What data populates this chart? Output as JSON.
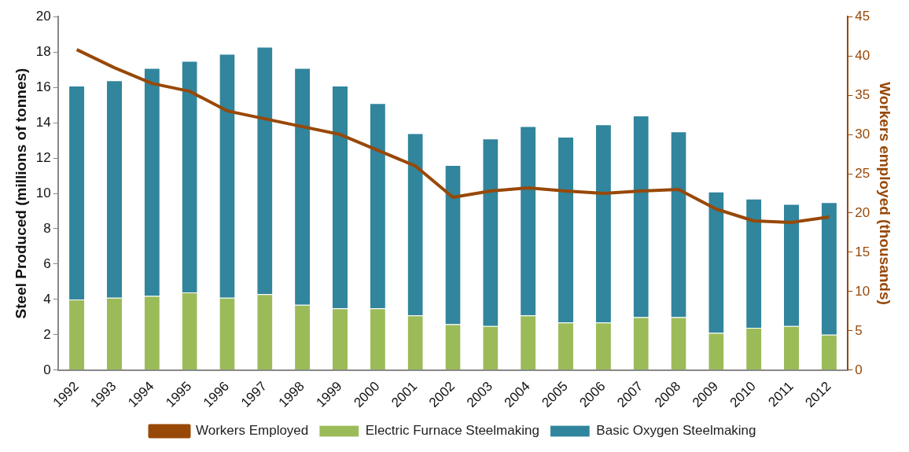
{
  "chart_data": {
    "type": "bar",
    "stacked": true,
    "ylabel": "Steel Produced (millions of tonnes)",
    "y2label": "Workers employed (thousands)",
    "categories": [
      "1992",
      "1993",
      "1994",
      "1995",
      "1996",
      "1997",
      "1998",
      "1999",
      "2000",
      "2001",
      "2002",
      "2003",
      "2004",
      "2005",
      "2006",
      "2007",
      "2008",
      "2009",
      "2010",
      "2011",
      "2012"
    ],
    "series": [
      {
        "name": "Electric Furnace Steelmaking",
        "color": "#9bbb59",
        "values": [
          4.0,
          4.1,
          4.2,
          4.4,
          4.1,
          4.3,
          3.7,
          3.5,
          3.5,
          3.1,
          2.6,
          2.5,
          3.1,
          2.7,
          2.7,
          3.0,
          3.0,
          2.1,
          2.4,
          2.5,
          2.0
        ]
      },
      {
        "name": "Basic Oxygen Steelmaking",
        "color": "#31859c",
        "values": [
          12.1,
          12.3,
          12.9,
          13.1,
          13.8,
          14.0,
          13.4,
          12.6,
          11.6,
          10.3,
          9.0,
          10.6,
          10.7,
          10.5,
          11.2,
          11.4,
          10.5,
          8.0,
          7.3,
          6.9,
          7.5
        ]
      },
      {
        "name": "Workers Employed",
        "type": "line",
        "axis": "y2",
        "color": "#984807",
        "values": [
          40.8,
          38.5,
          36.5,
          35.5,
          33,
          32,
          31,
          30,
          28,
          26,
          22,
          22.8,
          23.2,
          22.8,
          22.5,
          22.8,
          23,
          20.5,
          19,
          18.8,
          19.5
        ]
      }
    ],
    "ylim": [
      0,
      20
    ],
    "yticks": [
      0,
      2,
      4,
      6,
      8,
      10,
      12,
      14,
      16,
      18,
      20
    ],
    "y2lim": [
      0,
      45
    ],
    "y2ticks": [
      0,
      5,
      10,
      15,
      20,
      25,
      30,
      35,
      40,
      45
    ],
    "grid": false,
    "legend": "bottom"
  }
}
